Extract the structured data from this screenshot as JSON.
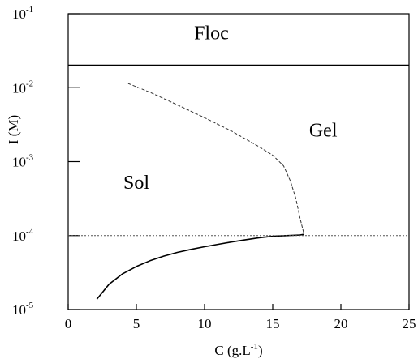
{
  "chart_data": {
    "type": "line",
    "title": "",
    "xlabel_main": "C (g.L",
    "xlabel_sup": "-1",
    "xlabel_end": ")",
    "ylabel": "I (M)",
    "xlim": [
      0,
      25
    ],
    "ylim": [
      1e-05,
      0.1
    ],
    "yscale": "log",
    "grid": false,
    "x_ticks": [
      {
        "value": 0,
        "label": "0"
      },
      {
        "value": 5,
        "label": "5"
      },
      {
        "value": 10,
        "label": "10"
      },
      {
        "value": 15,
        "label": "15"
      },
      {
        "value": 20,
        "label": "20"
      },
      {
        "value": 25,
        "label": "25"
      }
    ],
    "y_ticks": [
      {
        "value": 1e-05,
        "base": "10",
        "exp": "-5"
      },
      {
        "value": 0.0001,
        "base": "10",
        "exp": "-4"
      },
      {
        "value": 0.001,
        "base": "10",
        "exp": "-3"
      },
      {
        "value": 0.01,
        "base": "10",
        "exp": "-2"
      },
      {
        "value": 0.1,
        "base": "10",
        "exp": "-1"
      }
    ],
    "series": [
      {
        "style": "solid",
        "points": [
          [
            2.1,
            1.38e-05
          ],
          [
            3.0,
            2.2e-05
          ],
          [
            4.0,
            3.05e-05
          ],
          [
            5.0,
            3.82e-05
          ],
          [
            6.0,
            4.57e-05
          ],
          [
            7.0,
            5.28e-05
          ],
          [
            8.0,
            5.93e-05
          ],
          [
            9.0,
            6.51e-05
          ],
          [
            10.0,
            7.06e-05
          ],
          [
            11.0,
            7.63e-05
          ],
          [
            12.0,
            8.21e-05
          ],
          [
            13.0,
            8.78e-05
          ],
          [
            14.0,
            9.35e-05
          ],
          [
            15.0,
            9.78e-05
          ],
          [
            16.0,
            0.0001
          ],
          [
            17.0,
            0.000102
          ],
          [
            17.3,
            0.000104
          ]
        ]
      },
      {
        "style": "dashed",
        "points": [
          [
            4.4,
            0.0114
          ],
          [
            6.0,
            0.00867
          ],
          [
            8.0,
            0.00587
          ],
          [
            10.0,
            0.00393
          ],
          [
            12.0,
            0.00258
          ],
          [
            14.0,
            0.00159
          ],
          [
            15.0,
            0.00122
          ],
          [
            15.8,
            0.000876
          ],
          [
            16.3,
            0.000547
          ],
          [
            16.7,
            0.000315
          ],
          [
            17.0,
            0.000173
          ],
          [
            17.3,
            0.000104
          ]
        ]
      },
      {
        "style": "dotted",
        "points": [
          [
            0,
            0.0001
          ],
          [
            25,
            0.0001
          ]
        ]
      },
      {
        "style": "thick",
        "points": [
          [
            0,
            0.02
          ],
          [
            25,
            0.02
          ]
        ]
      }
    ],
    "annotations": [
      {
        "text": "Floc",
        "x": 10.5,
        "y": 0.045
      },
      {
        "text": "Gel",
        "x": 18.7,
        "y": 0.0022
      },
      {
        "text": "Sol",
        "x": 5.0,
        "y": 0.00043
      }
    ]
  }
}
